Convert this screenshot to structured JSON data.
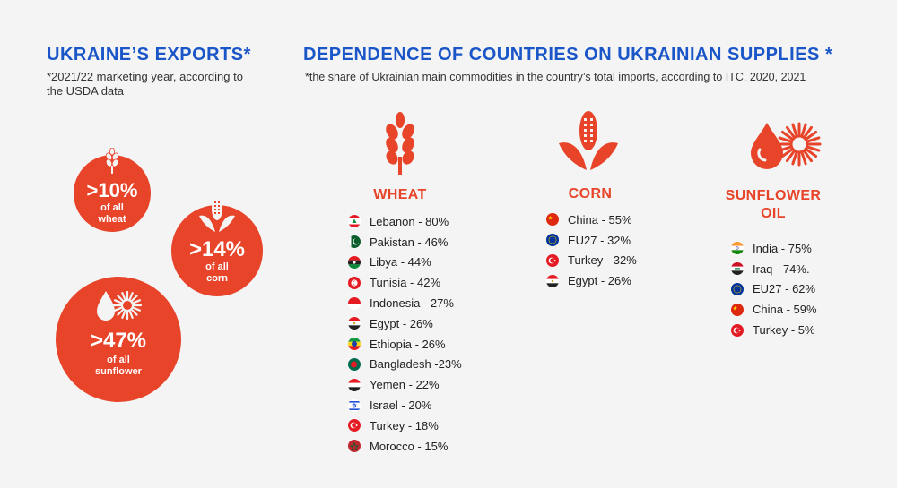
{
  "exports": {
    "title": "UKRAINE’S EXPORTS*",
    "note": "*2021/22 marketing year, according to the USDA data",
    "items": [
      {
        "pct": ">10%",
        "cap1": "of all",
        "cap2": "wheat"
      },
      {
        "pct": ">14%",
        "cap1": "of all",
        "cap2": "corn"
      },
      {
        "pct": ">47%",
        "cap1": "of all",
        "cap2": "sunflower"
      }
    ]
  },
  "dependence": {
    "title": "DEPENDENCE OF COUNTRIES ON UKRAINIAN SUPPLIES *",
    "note": "*the share of Ukrainian main commodities in the country’s total imports, according to ITC, 2020, 2021"
  },
  "wheat": {
    "title": "WHEAT",
    "rows": [
      {
        "label": "Lebanon - 80%",
        "flag": "lebanon"
      },
      {
        "label": "Pakistan - 46%",
        "flag": "pakistan"
      },
      {
        "label": "Libya - 44%",
        "flag": "libya"
      },
      {
        "label": "Tunisia - 42%",
        "flag": "tunisia"
      },
      {
        "label": "Indonesia - 27%",
        "flag": "indonesia"
      },
      {
        "label": "Egypt - 26%",
        "flag": "egypt"
      },
      {
        "label": "Ethiopia - 26%",
        "flag": "ethiopia"
      },
      {
        "label": "Bangladesh -23%",
        "flag": "bangladesh"
      },
      {
        "label": "Yemen - 22%",
        "flag": "yemen"
      },
      {
        "label": "Israel - 20%",
        "flag": "israel"
      },
      {
        "label": "Turkey - 18%",
        "flag": "turkey"
      },
      {
        "label": "Morocco - 15%",
        "flag": "morocco"
      }
    ]
  },
  "corn": {
    "title": "CORN",
    "rows": [
      {
        "label": "China - 55%",
        "flag": "china"
      },
      {
        "label": "EU27 - 32%",
        "flag": "eu"
      },
      {
        "label": "Turkey - 32%",
        "flag": "turkey"
      },
      {
        "label": "Egypt - 26%",
        "flag": "egypt"
      }
    ]
  },
  "sunflower": {
    "title_line1": "SUNFLOWER",
    "title_line2": "OIL",
    "rows": [
      {
        "label": "India - 75%",
        "flag": "india"
      },
      {
        "label": "Iraq - 74%.",
        "flag": "iraq"
      },
      {
        "label": "EU27 - 62%",
        "flag": "eu"
      },
      {
        "label": "China - 59%",
        "flag": "china"
      },
      {
        "label": "Turkey - 5%",
        "flag": "turkey"
      }
    ]
  },
  "colors": {
    "accent": "#e8442a",
    "blue": "#1a56c8",
    "background": "#f4f4f4"
  }
}
